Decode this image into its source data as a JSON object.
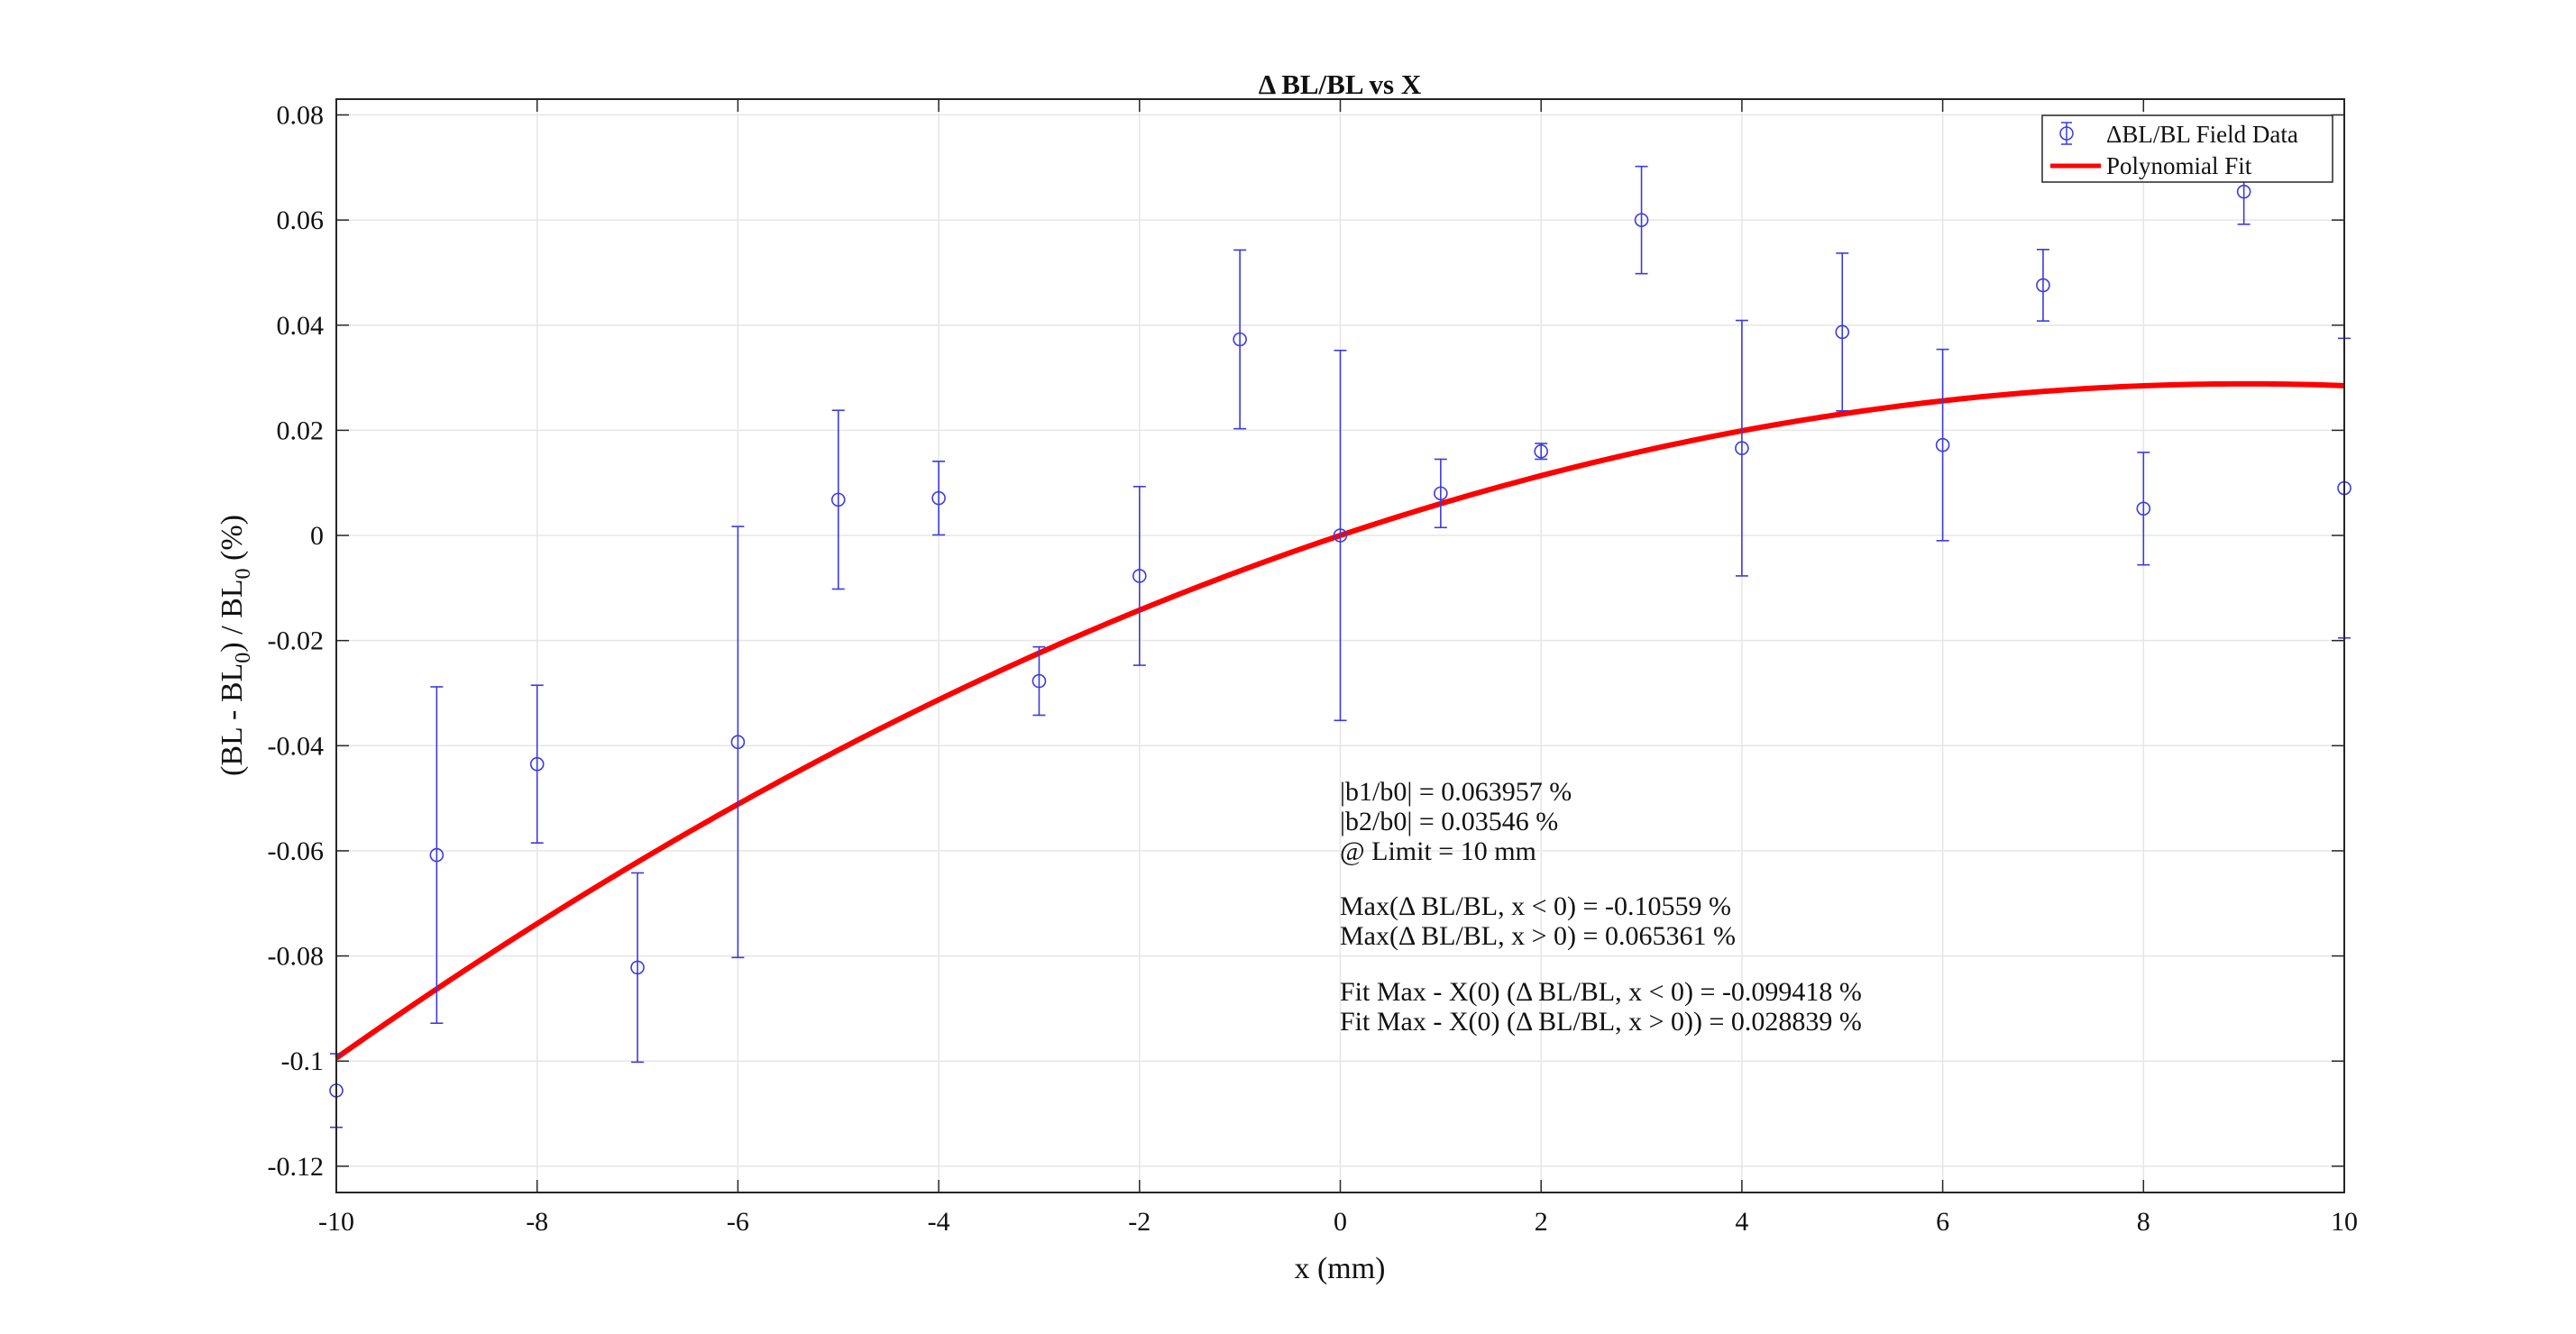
{
  "chart_data": {
    "type": "scatter",
    "title": "Δ BL/BL vs X",
    "xlabel": "x (mm)",
    "ylabel_parts": [
      "(BL - BL",
      "0",
      ") / BL",
      "0",
      " (%)"
    ],
    "xlim": [
      -10,
      10
    ],
    "ylim": [
      -0.125,
      0.083
    ],
    "xticks": [
      -10,
      -8,
      -6,
      -4,
      -2,
      0,
      2,
      4,
      6,
      8,
      10
    ],
    "xtick_labels": [
      "-10",
      "-8",
      "-6",
      "-4",
      "-2",
      "0",
      "2",
      "4",
      "6",
      "8",
      "10"
    ],
    "yticks": [
      -0.12,
      -0.1,
      -0.08,
      -0.06,
      -0.04,
      -0.02,
      0,
      0.02,
      0.04,
      0.06,
      0.08
    ],
    "ytick_labels": [
      "-0.12",
      "-0.1",
      "-0.08",
      "-0.06",
      "-0.04",
      "-0.02",
      "0",
      "0.02",
      "0.04",
      "0.06",
      "0.08"
    ],
    "grid": true,
    "legend_position": "top-right",
    "series": [
      {
        "name": "ΔBL/BL Field Data",
        "kind": "errorbar",
        "color": "#3b3bdf",
        "x": [
          -10,
          -9,
          -8,
          -7,
          -6,
          -5,
          -4,
          -3,
          -2,
          -1,
          0,
          1,
          2,
          3,
          4,
          5,
          6,
          7,
          8,
          9,
          10
        ],
        "y": [
          -0.1056,
          -0.0608,
          -0.0435,
          -0.0822,
          -0.0393,
          0.0068,
          0.0071,
          -0.0277,
          -0.0077,
          0.0373,
          0.0,
          0.008,
          0.016,
          0.06,
          0.0166,
          0.0387,
          0.0172,
          0.0476,
          0.0051,
          0.0654,
          0.009
        ],
        "err": [
          0.007,
          0.032,
          0.015,
          0.018,
          0.041,
          0.017,
          0.007,
          0.0065,
          0.017,
          0.017,
          0.0352,
          0.0065,
          0.0015,
          0.0102,
          0.0243,
          0.015,
          0.0182,
          0.0068,
          0.0107,
          0.0062,
          0.0285
        ]
      },
      {
        "name": "Polynomial Fit",
        "kind": "line",
        "color": "#ff0000",
        "coefficients": {
          "c0": 0,
          "c1": 0.0063957,
          "c2": -0.0003546
        }
      }
    ],
    "annotations": [
      "|b1/b0| = 0.063957 %",
      "|b2/b0| = 0.03546 %",
      "@ Limit = 10 mm",
      "",
      "Max(Δ BL/BL,  x < 0) = -0.10559 %",
      "Max(Δ BL/BL,  x > 0) = 0.065361 %",
      "",
      "Fit Max - X(0) (Δ BL/BL,  x < 0) = -0.099418 %",
      "Fit Max - X(0) (Δ BL/BL,  x > 0)) = 0.028839 %"
    ]
  }
}
